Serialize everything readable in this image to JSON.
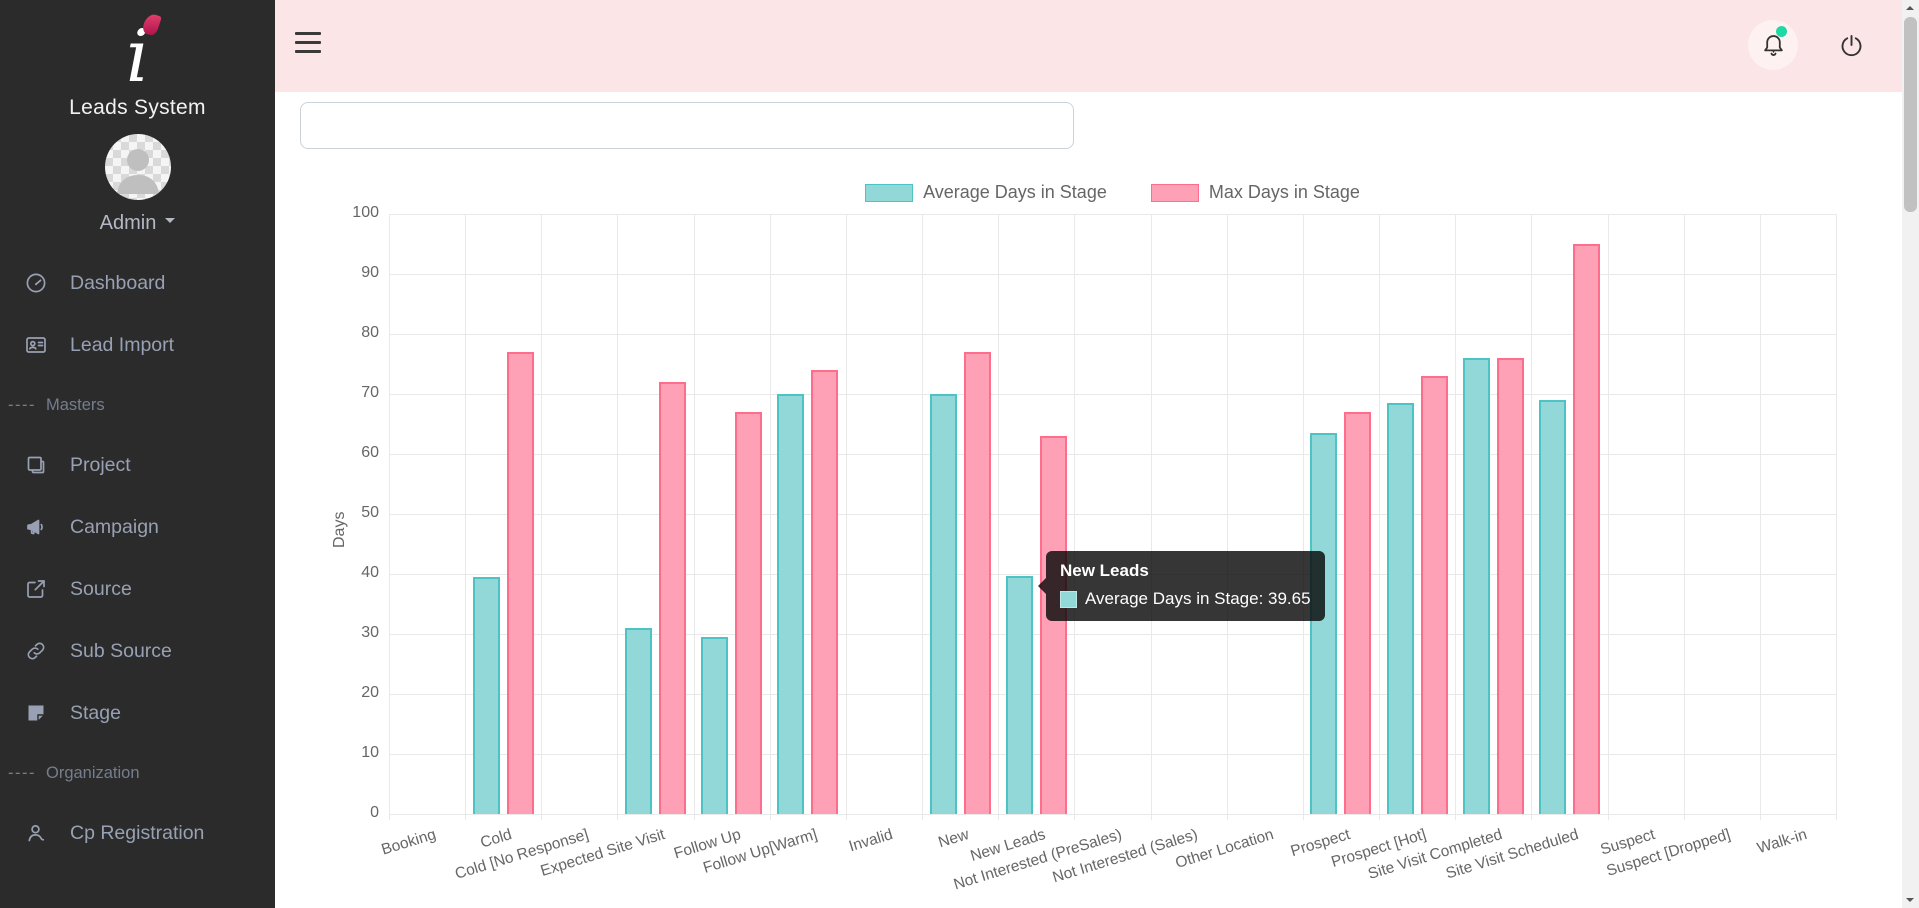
{
  "sidebar": {
    "brand": {
      "logo_letter": "i",
      "name": "Leads System"
    },
    "user": {
      "name": "Admin"
    },
    "section_prefix": "----",
    "items": [
      {
        "type": "item",
        "icon": "dashboard-icon",
        "label": "Dashboard"
      },
      {
        "type": "item",
        "icon": "lead-import-icon",
        "label": "Lead Import"
      },
      {
        "type": "section",
        "label": "Masters"
      },
      {
        "type": "item",
        "icon": "project-icon",
        "label": "Project"
      },
      {
        "type": "item",
        "icon": "campaign-icon",
        "label": "Campaign"
      },
      {
        "type": "item",
        "icon": "source-icon",
        "label": "Source"
      },
      {
        "type": "item",
        "icon": "sub-source-icon",
        "label": "Sub Source"
      },
      {
        "type": "item",
        "icon": "stage-icon",
        "label": "Stage"
      },
      {
        "type": "section",
        "label": "Organization"
      },
      {
        "type": "item",
        "icon": "cp-registration-icon",
        "label": "Cp Registration"
      }
    ]
  },
  "topbar": {
    "notification_dot_color": "#1ed9a4"
  },
  "content": {
    "filter": {
      "value": ""
    }
  },
  "chart_data": {
    "type": "bar",
    "title": "",
    "xlabel": "",
    "ylabel": "Days",
    "ylim": [
      0,
      100
    ],
    "ytick_step": 10,
    "grid": true,
    "legend_position": "top",
    "categories": [
      "Booking",
      "Cold",
      "Cold [No Response]",
      "Expected Site Visit",
      "Follow Up",
      "Follow Up[Warm]",
      "Invalid",
      "New",
      "New Leads",
      "Not Interested (PreSales)",
      "Not Interested (Sales)",
      "Other Location",
      "Prospect",
      "Prospect [Hot]",
      "Site Visit Completed",
      "Site Visit Scheduled",
      "Suspect",
      "Suspect [Dropped]",
      "Walk-in"
    ],
    "series": [
      {
        "name": "Average Days in Stage",
        "fill": "#92d8d8",
        "stroke": "#4dc3c3",
        "values": [
          null,
          39.5,
          null,
          31,
          29.5,
          70,
          null,
          70,
          39.65,
          null,
          null,
          null,
          63.5,
          68.5,
          76,
          69,
          null,
          null,
          null
        ]
      },
      {
        "name": "Max Days in Stage",
        "fill": "#ffa1b6",
        "stroke": "#ff6d8d",
        "values": [
          null,
          77,
          null,
          72,
          67,
          74,
          null,
          77,
          63,
          null,
          null,
          null,
          67,
          73,
          76,
          95,
          null,
          null,
          null
        ]
      }
    ],
    "tooltip": {
      "title": "New Leads",
      "label": "Average Days in Stage: 39.65",
      "series": "Average Days in Stage",
      "category": "New Leads",
      "value": 39.65
    }
  }
}
